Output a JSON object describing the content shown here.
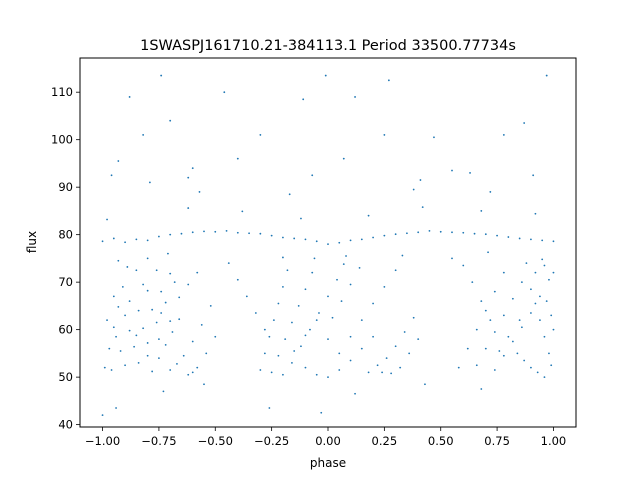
{
  "chart_data": {
    "type": "scatter",
    "title": "1SWASPJ161710.21-384113.1 Period 33500.77734s",
    "xlabel": "phase",
    "ylabel": "flux",
    "xlim": [
      -1.1,
      1.1
    ],
    "ylim": [
      39.5,
      117.2
    ],
    "xticks": [
      -1.0,
      -0.75,
      -0.5,
      -0.25,
      0.0,
      0.25,
      0.5,
      0.75,
      1.0
    ],
    "xtick_labels": [
      "−1.00",
      "−0.75",
      "−0.50",
      "−0.25",
      "0.00",
      "0.25",
      "0.50",
      "0.75",
      "1.00"
    ],
    "yticks": [
      40,
      50,
      60,
      70,
      80,
      90,
      100,
      110
    ],
    "ytick_labels": [
      "40",
      "50",
      "60",
      "70",
      "80",
      "90",
      "100",
      "110"
    ],
    "grid": false,
    "legend": "none",
    "point_color": "#1f77b4",
    "series": [
      {
        "points": [
          [
            -1.0,
            78.6
          ],
          [
            -0.95,
            79.2
          ],
          [
            -0.9,
            78.4
          ],
          [
            -0.85,
            79.0
          ],
          [
            -0.8,
            78.8
          ],
          [
            -0.75,
            79.6
          ],
          [
            -0.7,
            80.0
          ],
          [
            -0.65,
            80.2
          ],
          [
            -0.6,
            80.5
          ],
          [
            -0.55,
            80.7
          ],
          [
            -0.5,
            80.6
          ],
          [
            -0.45,
            80.8
          ],
          [
            -0.4,
            80.4
          ],
          [
            -0.35,
            80.3
          ],
          [
            -0.3,
            80.2
          ],
          [
            -0.25,
            79.8
          ],
          [
            -0.2,
            79.4
          ],
          [
            -0.15,
            79.2
          ],
          [
            -0.1,
            79.0
          ],
          [
            -0.05,
            78.6
          ],
          [
            0.0,
            78.0
          ],
          [
            0.05,
            78.3
          ],
          [
            0.1,
            78.8
          ],
          [
            0.15,
            79.0
          ],
          [
            0.2,
            79.4
          ],
          [
            0.25,
            79.8
          ],
          [
            0.3,
            80.1
          ],
          [
            0.35,
            80.3
          ],
          [
            0.4,
            80.5
          ],
          [
            0.45,
            80.8
          ],
          [
            0.5,
            80.6
          ],
          [
            0.55,
            80.5
          ],
          [
            0.6,
            80.4
          ],
          [
            0.65,
            80.2
          ],
          [
            0.7,
            80.1
          ],
          [
            0.75,
            79.8
          ],
          [
            0.8,
            79.5
          ],
          [
            0.85,
            79.2
          ],
          [
            0.9,
            79.0
          ],
          [
            0.95,
            78.8
          ],
          [
            1.0,
            78.6
          ],
          [
            -0.98,
            83.2
          ],
          [
            -0.62,
            85.6
          ],
          [
            -0.38,
            84.9
          ],
          [
            -0.12,
            83.4
          ],
          [
            0.18,
            84.0
          ],
          [
            0.42,
            85.8
          ],
          [
            0.68,
            85.0
          ],
          [
            0.92,
            84.4
          ],
          [
            -0.93,
            74.5
          ],
          [
            -0.71,
            76.0
          ],
          [
            -0.2,
            75.2
          ],
          [
            0.07,
            73.8
          ],
          [
            0.33,
            75.6
          ],
          [
            0.71,
            76.3
          ],
          [
            0.95,
            74.8
          ],
          [
            -0.99,
            52.0
          ],
          [
            -0.97,
            56.0
          ],
          [
            -0.95,
            60.5
          ],
          [
            -0.93,
            64.8
          ],
          [
            -0.91,
            69.0
          ],
          [
            -0.89,
            73.2
          ],
          [
            -0.96,
            51.5
          ],
          [
            -0.92,
            55.5
          ],
          [
            -0.88,
            59.8
          ],
          [
            -0.84,
            64.0
          ],
          [
            -0.8,
            68.2
          ],
          [
            -0.76,
            72.5
          ],
          [
            -0.9,
            52.5
          ],
          [
            -0.86,
            56.4
          ],
          [
            -0.82,
            60.3
          ],
          [
            -0.78,
            64.2
          ],
          [
            -0.74,
            68.0
          ],
          [
            -0.7,
            71.8
          ],
          [
            -0.84,
            53.0
          ],
          [
            -0.8,
            57.2
          ],
          [
            -0.76,
            61.5
          ],
          [
            -0.72,
            65.7
          ],
          [
            -0.68,
            70.0
          ],
          [
            -0.78,
            51.2
          ],
          [
            -0.75,
            54.0
          ],
          [
            -0.72,
            56.8
          ],
          [
            -0.69,
            59.5
          ],
          [
            -0.66,
            62.2
          ],
          [
            -0.7,
            51.5
          ],
          [
            -0.67,
            52.8
          ],
          [
            -0.64,
            54.5
          ],
          [
            -0.6,
            57.5
          ],
          [
            -0.56,
            61.0
          ],
          [
            -0.52,
            65.0
          ],
          [
            -0.95,
            67.0
          ],
          [
            -0.9,
            63.0
          ],
          [
            -0.85,
            58.8
          ],
          [
            -0.8,
            54.5
          ],
          [
            -0.75,
            58.0
          ],
          [
            -0.7,
            61.8
          ],
          [
            -0.98,
            62.0
          ],
          [
            -0.94,
            58.5
          ],
          [
            -0.88,
            66.0
          ],
          [
            -0.82,
            69.5
          ],
          [
            -0.74,
            63.5
          ],
          [
            -0.66,
            66.8
          ],
          [
            -0.62,
            69.5
          ],
          [
            -0.58,
            72.0
          ],
          [
            -0.85,
            72.5
          ],
          [
            -0.8,
            75.0
          ],
          [
            -0.6,
            51.0
          ],
          [
            -0.62,
            50.5
          ],
          [
            -0.58,
            52.0
          ],
          [
            -0.54,
            55.0
          ],
          [
            -0.5,
            58.5
          ],
          [
            -0.3,
            51.5
          ],
          [
            -0.28,
            55.0
          ],
          [
            -0.26,
            58.5
          ],
          [
            -0.24,
            62.0
          ],
          [
            -0.22,
            65.5
          ],
          [
            -0.2,
            69.0
          ],
          [
            -0.18,
            72.5
          ],
          [
            -0.25,
            51.0
          ],
          [
            -0.22,
            54.5
          ],
          [
            -0.19,
            58.0
          ],
          [
            -0.16,
            61.5
          ],
          [
            -0.13,
            65.0
          ],
          [
            -0.1,
            68.5
          ],
          [
            -0.07,
            72.0
          ],
          [
            -0.2,
            50.5
          ],
          [
            -0.16,
            53.0
          ],
          [
            -0.12,
            56.5
          ],
          [
            -0.08,
            60.0
          ],
          [
            -0.04,
            63.5
          ],
          [
            0.0,
            67.0
          ],
          [
            0.04,
            70.5
          ],
          [
            -0.1,
            52.0
          ],
          [
            -0.05,
            50.5
          ],
          [
            0.0,
            50.0
          ],
          [
            0.05,
            51.5
          ],
          [
            0.1,
            53.5
          ],
          [
            0.15,
            56.0
          ],
          [
            0.2,
            58.5
          ],
          [
            -0.15,
            55.5
          ],
          [
            -0.1,
            58.8
          ],
          [
            -0.05,
            62.0
          ],
          [
            0.0,
            58.0
          ],
          [
            0.05,
            55.0
          ],
          [
            0.1,
            58.5
          ],
          [
            0.15,
            62.0
          ],
          [
            0.2,
            65.5
          ],
          [
            0.25,
            69.0
          ],
          [
            0.3,
            72.5
          ],
          [
            0.02,
            62.5
          ],
          [
            0.06,
            66.0
          ],
          [
            0.1,
            69.5
          ],
          [
            0.14,
            73.0
          ],
          [
            -0.28,
            60.0
          ],
          [
            -0.32,
            63.5
          ],
          [
            -0.36,
            67.0
          ],
          [
            -0.4,
            70.5
          ],
          [
            -0.44,
            74.0
          ],
          [
            0.18,
            51.0
          ],
          [
            0.22,
            52.5
          ],
          [
            0.26,
            54.0
          ],
          [
            0.3,
            56.5
          ],
          [
            0.34,
            59.5
          ],
          [
            0.38,
            62.5
          ],
          [
            0.24,
            51.0
          ],
          [
            0.28,
            50.8
          ],
          [
            0.32,
            52.0
          ],
          [
            0.36,
            55.0
          ],
          [
            0.4,
            58.0
          ],
          [
            0.08,
            75.5
          ],
          [
            -0.06,
            75.0
          ],
          [
            0.58,
            52.0
          ],
          [
            0.62,
            56.0
          ],
          [
            0.66,
            60.0
          ],
          [
            0.7,
            64.0
          ],
          [
            0.74,
            68.0
          ],
          [
            0.78,
            72.0
          ],
          [
            0.66,
            52.5
          ],
          [
            0.7,
            56.0
          ],
          [
            0.74,
            59.5
          ],
          [
            0.78,
            63.0
          ],
          [
            0.82,
            66.5
          ],
          [
            0.86,
            70.0
          ],
          [
            0.74,
            51.5
          ],
          [
            0.78,
            54.5
          ],
          [
            0.82,
            57.5
          ],
          [
            0.86,
            60.5
          ],
          [
            0.9,
            63.5
          ],
          [
            0.94,
            67.0
          ],
          [
            0.98,
            70.5
          ],
          [
            0.84,
            55.0
          ],
          [
            0.87,
            53.5
          ],
          [
            0.9,
            52.0
          ],
          [
            0.93,
            51.0
          ],
          [
            0.96,
            50.0
          ],
          [
            0.99,
            52.5
          ],
          [
            0.98,
            55.0
          ],
          [
            0.96,
            58.5
          ],
          [
            0.94,
            62.0
          ],
          [
            0.92,
            65.5
          ],
          [
            0.9,
            68.5
          ],
          [
            1.0,
            60.0
          ],
          [
            0.99,
            63.0
          ],
          [
            0.97,
            66.0
          ],
          [
            0.85,
            62.0
          ],
          [
            0.8,
            58.5
          ],
          [
            0.76,
            55.5
          ],
          [
            0.72,
            62.0
          ],
          [
            0.68,
            66.0
          ],
          [
            0.64,
            70.0
          ],
          [
            0.6,
            73.5
          ],
          [
            0.55,
            75.0
          ],
          [
            0.88,
            74.0
          ],
          [
            0.92,
            72.0
          ],
          [
            0.96,
            73.5
          ],
          [
            1.0,
            72.0
          ],
          [
            -0.88,
            109.0
          ],
          [
            -0.74,
            113.5
          ],
          [
            -0.46,
            110.0
          ],
          [
            -0.11,
            108.5
          ],
          [
            -0.01,
            113.5
          ],
          [
            0.12,
            109.0
          ],
          [
            0.27,
            112.5
          ],
          [
            0.97,
            113.5
          ],
          [
            -0.7,
            104.0
          ],
          [
            -0.3,
            101.0
          ],
          [
            0.25,
            101.0
          ],
          [
            0.47,
            100.5
          ],
          [
            0.87,
            103.5
          ],
          [
            -0.82,
            101.0
          ],
          [
            0.78,
            101.0
          ],
          [
            -0.93,
            95.5
          ],
          [
            -0.6,
            94.0
          ],
          [
            -0.4,
            96.0
          ],
          [
            0.07,
            96.0
          ],
          [
            0.55,
            93.5
          ],
          [
            -0.96,
            92.5
          ],
          [
            -0.79,
            91.0
          ],
          [
            -0.62,
            92.0
          ],
          [
            -0.07,
            92.5
          ],
          [
            0.41,
            91.5
          ],
          [
            0.63,
            93.0
          ],
          [
            0.91,
            92.5
          ],
          [
            -0.57,
            89.0
          ],
          [
            -0.17,
            88.5
          ],
          [
            0.38,
            89.5
          ],
          [
            0.72,
            89.0
          ],
          [
            -0.73,
            47.0
          ],
          [
            -0.55,
            48.5
          ],
          [
            0.43,
            48.5
          ],
          [
            0.68,
            47.5
          ],
          [
            -0.94,
            43.5
          ],
          [
            -0.03,
            42.5
          ],
          [
            -0.26,
            43.5
          ],
          [
            -1.0,
            42.0
          ],
          [
            0.12,
            46.5
          ]
        ]
      }
    ]
  }
}
